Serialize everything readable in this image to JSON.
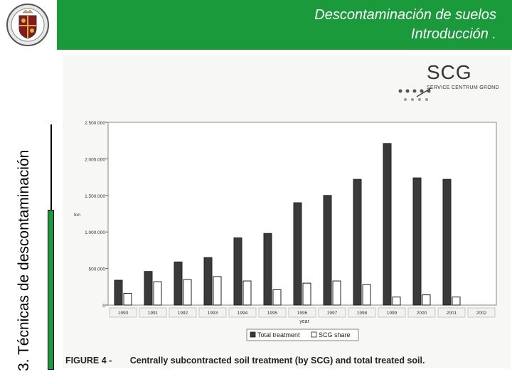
{
  "header": {
    "title_line1": "Descontaminación de suelos",
    "title_line2": "Introducción   ."
  },
  "sidebar": {
    "vertical_title": "3.  Técnicas de descontaminación"
  },
  "logo": {
    "icon": "university-crest-icon"
  },
  "brand": {
    "name": "SCG",
    "tagline": "SERVICE CENTRUM GROND"
  },
  "figure": {
    "label": "FIGURE 4 -",
    "caption": "Centrally subcontracted soil treatment (by SCG) and total treated soil."
  },
  "colors": {
    "header_green": "#1a9a3a",
    "dark_bar": "#3a3a3a",
    "light_bar": "#ffffff"
  },
  "chart_data": {
    "type": "bar",
    "ylabel": "ton",
    "xlabel": "year",
    "ylim": [
      0,
      2500000
    ],
    "yticks": [
      "0",
      "500.000",
      "1.000.000",
      "1.500.000",
      "2.000.000",
      "2.500.000"
    ],
    "categories": [
      "1990",
      "1991",
      "1992",
      "1993",
      "1994",
      "1995",
      "1996",
      "1997",
      "1998",
      "1999",
      "2000",
      "2001",
      "2002"
    ],
    "series": [
      {
        "name": "Total treatment",
        "values": [
          340000,
          460000,
          590000,
          650000,
          920000,
          980000,
          1400000,
          1500000,
          1720000,
          2210000,
          1740000,
          1720000,
          0
        ]
      },
      {
        "name": "SCG share",
        "values": [
          160000,
          320000,
          350000,
          390000,
          330000,
          210000,
          300000,
          330000,
          280000,
          110000,
          140000,
          110000,
          0
        ]
      }
    ],
    "legend_position": "bottom",
    "grid": false
  }
}
